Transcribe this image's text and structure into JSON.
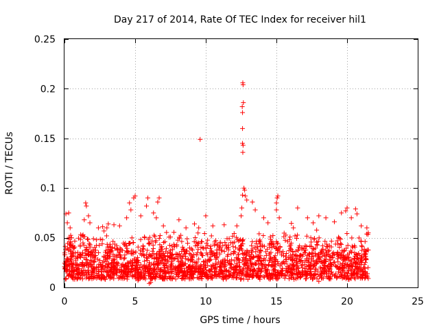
{
  "chart_data": {
    "type": "scatter",
    "title": "Day 217 of 2014, Rate Of TEC Index for receiver hil1",
    "xlabel": "GPS time / hours",
    "ylabel": "ROTI / TECUs",
    "xlim": [
      0,
      25
    ],
    "ylim": [
      0,
      0.25
    ],
    "x_ticks": [
      0,
      5,
      10,
      15,
      20,
      25
    ],
    "x_tick_labels": [
      "0",
      "5",
      "10",
      "15",
      "20",
      "25"
    ],
    "y_ticks": [
      0,
      0.05,
      0.1,
      0.15,
      0.2,
      0.25
    ],
    "y_tick_labels": [
      "0",
      "0.05",
      "0.1",
      "0.15",
      "0.2",
      "0.25"
    ],
    "grid": true,
    "marker": "+",
    "color": "#ff0000",
    "series": [
      {
        "name": "ROTI",
        "dense_band": {
          "x_range": [
            0,
            21.5
          ],
          "typical_range": [
            0.008,
            0.05
          ],
          "approx_count": 2200
        },
        "points": [
          [
            0.1,
            0.074
          ],
          [
            0.3,
            0.075
          ],
          [
            0.2,
            0.065
          ],
          [
            0.4,
            0.06
          ],
          [
            0.5,
            0.05
          ],
          [
            1.4,
            0.068
          ],
          [
            1.5,
            0.085
          ],
          [
            1.55,
            0.082
          ],
          [
            1.7,
            0.072
          ],
          [
            1.8,
            0.065
          ],
          [
            2.4,
            0.06
          ],
          [
            2.7,
            0.061
          ],
          [
            3.0,
            0.06
          ],
          [
            3.1,
            0.064
          ],
          [
            3.5,
            0.063
          ],
          [
            3.9,
            0.062
          ],
          [
            4.4,
            0.07
          ],
          [
            4.6,
            0.085
          ],
          [
            4.7,
            0.078
          ],
          [
            4.9,
            0.09
          ],
          [
            5.0,
            0.092
          ],
          [
            5.4,
            0.072
          ],
          [
            5.8,
            0.082
          ],
          [
            5.9,
            0.09
          ],
          [
            6.3,
            0.075
          ],
          [
            6.6,
            0.086
          ],
          [
            6.7,
            0.09
          ],
          [
            6.5,
            0.07
          ],
          [
            7.0,
            0.062
          ],
          [
            8.1,
            0.068
          ],
          [
            8.6,
            0.06
          ],
          [
            9.2,
            0.064
          ],
          [
            9.5,
            0.06
          ],
          [
            9.6,
            0.149
          ],
          [
            10.0,
            0.072
          ],
          [
            10.5,
            0.062
          ],
          [
            11.3,
            0.063
          ],
          [
            12.2,
            0.062
          ],
          [
            12.5,
            0.072
          ],
          [
            12.55,
            0.08
          ],
          [
            12.6,
            0.093
          ],
          [
            12.62,
            0.206
          ],
          [
            12.64,
            0.204
          ],
          [
            12.66,
            0.186
          ],
          [
            12.58,
            0.182
          ],
          [
            12.6,
            0.176
          ],
          [
            12.6,
            0.16
          ],
          [
            12.6,
            0.145
          ],
          [
            12.64,
            0.143
          ],
          [
            12.62,
            0.136
          ],
          [
            12.7,
            0.1
          ],
          [
            12.75,
            0.098
          ],
          [
            12.8,
            0.092
          ],
          [
            12.9,
            0.088
          ],
          [
            13.3,
            0.086
          ],
          [
            13.5,
            0.078
          ],
          [
            14.1,
            0.07
          ],
          [
            14.4,
            0.065
          ],
          [
            15.0,
            0.085
          ],
          [
            15.05,
            0.09
          ],
          [
            15.1,
            0.092
          ],
          [
            15.0,
            0.078
          ],
          [
            15.2,
            0.07
          ],
          [
            16.2,
            0.06
          ],
          [
            16.5,
            0.08
          ],
          [
            17.2,
            0.07
          ],
          [
            17.6,
            0.065
          ],
          [
            18.0,
            0.072
          ],
          [
            18.5,
            0.07
          ],
          [
            19.1,
            0.066
          ],
          [
            19.6,
            0.075
          ],
          [
            19.9,
            0.077
          ],
          [
            20.0,
            0.08
          ],
          [
            20.3,
            0.07
          ],
          [
            20.6,
            0.079
          ],
          [
            20.7,
            0.074
          ],
          [
            21.0,
            0.062
          ],
          [
            21.4,
            0.06
          ],
          [
            21.5,
            0.055
          ],
          [
            6.0,
            0.004
          ],
          [
            6.1,
            0.005
          ],
          [
            5.2,
            0.007
          ],
          [
            18.0,
            0.006
          ],
          [
            20.1,
            0.008
          ],
          [
            21.5,
            0.009
          ]
        ]
      }
    ]
  }
}
